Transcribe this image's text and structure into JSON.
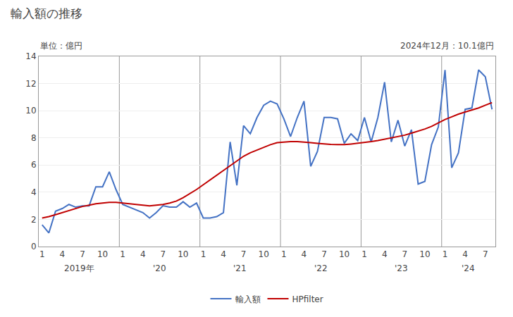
{
  "chart_data": {
    "type": "line",
    "title": "輸入額の推移",
    "ylabel": "単位：億円",
    "annotation": "2024年12月：10.1億円",
    "categories": [
      "1",
      null,
      null,
      "4",
      null,
      null,
      "7",
      null,
      null,
      "10",
      null,
      null,
      "1",
      null,
      null,
      "4",
      null,
      null,
      "7",
      null,
      null,
      "10",
      null,
      null,
      "1",
      null,
      null,
      "4",
      null,
      null,
      "7",
      null,
      null,
      "10",
      null,
      null,
      "1",
      null,
      null,
      "4",
      null,
      null,
      "7",
      null,
      null,
      "10",
      null,
      null,
      "1",
      null,
      null,
      "4",
      null,
      null,
      "7",
      null,
      null,
      "10",
      null,
      null,
      "1",
      null,
      null,
      "4",
      null,
      null,
      "7",
      null
    ],
    "category_groups": [
      {
        "label": "2019年",
        "start": 0
      },
      {
        "label": "'20",
        "start": 12
      },
      {
        "label": "'21",
        "start": 24
      },
      {
        "label": "'22",
        "start": 36
      },
      {
        "label": "'23",
        "start": 48
      },
      {
        "label": "'24",
        "start": 60
      }
    ],
    "series": [
      {
        "name": "輸入額",
        "color": "#4472C4",
        "values": [
          1.6,
          1.0,
          2.6,
          2.8,
          3.1,
          2.9,
          3.0,
          3.0,
          4.4,
          4.4,
          5.5,
          4.2,
          3.1,
          2.9,
          2.7,
          2.5,
          2.1,
          2.5,
          3.0,
          2.9,
          2.9,
          3.3,
          2.9,
          3.2,
          2.1,
          2.1,
          2.2,
          2.5,
          7.7,
          4.5,
          8.9,
          8.3,
          9.5,
          10.4,
          10.7,
          10.5,
          9.4,
          8.1,
          9.5,
          10.7,
          5.9,
          7.0,
          9.5,
          9.5,
          9.4,
          7.6,
          8.3,
          7.8,
          9.5,
          7.7,
          9.5,
          12.1,
          7.7,
          9.3,
          7.4,
          8.6,
          4.6,
          4.8,
          7.5,
          8.8,
          13.0,
          5.8,
          6.9,
          10.1,
          10.2,
          13.0,
          12.5,
          10.1
        ]
      },
      {
        "name": "HPfilter",
        "color": "#C00000",
        "values": [
          2.1,
          2.2,
          2.35,
          2.5,
          2.65,
          2.8,
          2.95,
          3.05,
          3.15,
          3.2,
          3.25,
          3.25,
          3.2,
          3.15,
          3.1,
          3.05,
          3.0,
          3.05,
          3.1,
          3.2,
          3.35,
          3.6,
          3.9,
          4.2,
          4.55,
          4.9,
          5.25,
          5.6,
          5.95,
          6.3,
          6.65,
          6.9,
          7.1,
          7.3,
          7.5,
          7.65,
          7.7,
          7.72,
          7.72,
          7.7,
          7.65,
          7.6,
          7.55,
          7.52,
          7.5,
          7.5,
          7.55,
          7.6,
          7.65,
          7.72,
          7.8,
          7.9,
          8.0,
          8.1,
          8.2,
          8.35,
          8.5,
          8.65,
          8.85,
          9.1,
          9.35,
          9.55,
          9.75,
          9.9,
          10.05,
          10.2,
          10.4,
          10.6
        ]
      }
    ],
    "ylim": [
      0,
      14
    ],
    "yticks": [
      0,
      2,
      4,
      6,
      8,
      10,
      12,
      14
    ],
    "grid": true,
    "legend": "bottom"
  }
}
